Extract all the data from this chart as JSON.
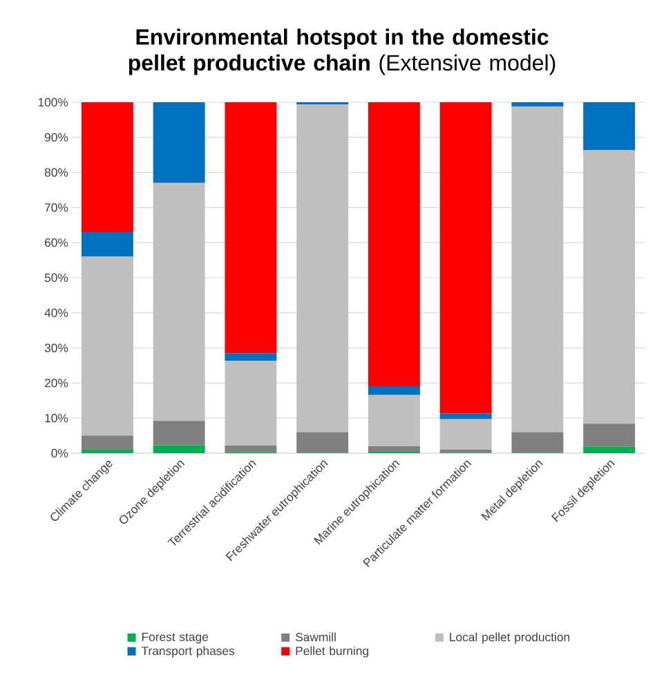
{
  "chart_data": {
    "type": "bar",
    "stacked": true,
    "title": "**Environmental hotspot in the domestic pellet productive chain** (Extensive model)",
    "categories": [
      "Climate change",
      "Ozone depletion",
      "Terrestrial acidification",
      "Freshwater eutrophication",
      "Marine eutrophication",
      "Particulate matter formation",
      "Metal depletion",
      "Fossil depletion"
    ],
    "series": [
      {
        "name": "Forest stage",
        "color": "#00b050",
        "values": [
          1,
          2.2,
          0.3,
          0.1,
          0.4,
          0.1,
          0.1,
          1.8
        ]
      },
      {
        "name": "Sawmill",
        "color": "#808080",
        "values": [
          4,
          7,
          1.9,
          5.9,
          1.6,
          0.9,
          5.9,
          6.6
        ]
      },
      {
        "name": "Local pellet production",
        "color": "#bfbfbf",
        "values": [
          51,
          67.8,
          24.1,
          93.4,
          14.6,
          8.7,
          92.8,
          77.9
        ]
      },
      {
        "name": "Transport phases",
        "color": "#0070c0",
        "values": [
          7,
          23,
          2.2,
          0.6,
          2.5,
          1.6,
          1.2,
          13.7
        ]
      },
      {
        "name": "Pellet burning",
        "color": "#ff0000",
        "values": [
          37,
          0,
          71.5,
          0,
          80.9,
          88.7,
          0,
          0
        ]
      }
    ],
    "ylim": [
      0,
      100
    ],
    "yticks": [
      {
        "value": 0,
        "label": "0%"
      },
      {
        "value": 10,
        "label": "10%"
      },
      {
        "value": 20,
        "label": "20%"
      },
      {
        "value": 30,
        "label": "30%"
      },
      {
        "value": 40,
        "label": "40%"
      },
      {
        "value": 50,
        "label": "50%"
      },
      {
        "value": 60,
        "label": "60%"
      },
      {
        "value": 70,
        "label": "70%"
      },
      {
        "value": 80,
        "label": "80%"
      },
      {
        "value": 90,
        "label": "90%"
      },
      {
        "value": 100,
        "label": "100%"
      }
    ],
    "grid": "y",
    "legend": "bottom"
  }
}
